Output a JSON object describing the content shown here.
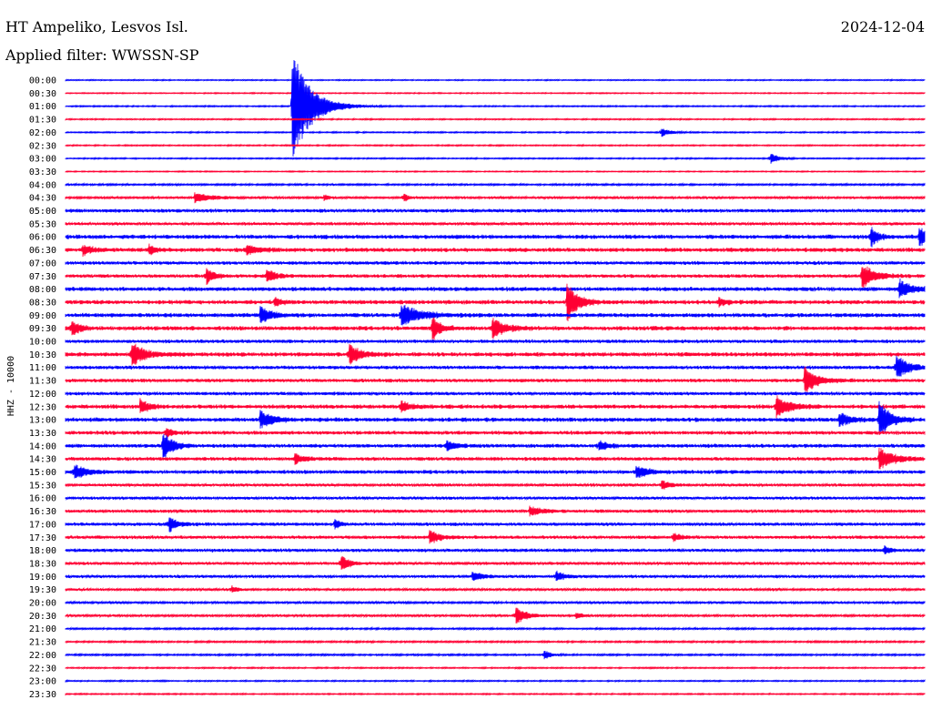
{
  "header": {
    "station": "HT Ampeliko, Lesvos Isl.",
    "date": "2024-12-04",
    "filter": "Applied filter: WWSSN-SP"
  },
  "colors": {
    "blue": "#0000ff",
    "red": "#ff0033"
  },
  "chart_data": {
    "type": "line",
    "title": "HT Ampeliko, Lesvos Isl.",
    "ylabel": "HHZ - 10000",
    "row_colors": [
      "blue",
      "red"
    ],
    "x_range_minutes": [
      0,
      30
    ],
    "tick_labels": [
      "00:00",
      "00:30",
      "01:00",
      "01:30",
      "02:00",
      "02:30",
      "03:00",
      "03:30",
      "04:00",
      "04:30",
      "05:00",
      "05:30",
      "06:00",
      "06:30",
      "07:00",
      "07:30",
      "08:00",
      "08:30",
      "09:00",
      "09:30",
      "10:00",
      "10:30",
      "11:00",
      "11:30",
      "12:00",
      "12:30",
      "13:00",
      "13:30",
      "14:00",
      "14:30",
      "15:00",
      "15:30",
      "16:00",
      "16:30",
      "17:00",
      "17:30",
      "18:00",
      "18:30",
      "19:00",
      "19:30",
      "20:00",
      "20:30",
      "21:00",
      "21:30",
      "22:00",
      "22:30",
      "23:00",
      "23:30"
    ],
    "noise_levels": [
      0.5,
      0.5,
      0.6,
      0.6,
      0.6,
      0.6,
      0.6,
      0.5,
      0.8,
      1.0,
      1.5,
      1.2,
      1.8,
      1.8,
      1.5,
      1.5,
      1.8,
      1.8,
      1.8,
      1.8,
      1.5,
      1.8,
      1.5,
      1.5,
      1.5,
      1.8,
      1.8,
      1.6,
      1.6,
      1.6,
      1.6,
      1.2,
      1.2,
      1.4,
      1.4,
      1.4,
      1.4,
      1.2,
      1.2,
      1.0,
      1.0,
      1.0,
      0.8,
      0.8,
      0.8,
      0.6,
      0.6,
      0.6
    ],
    "events": [
      {
        "row": 2,
        "minute": 7.9,
        "amplitude": 64,
        "duration_min": 1.6
      },
      {
        "row": 4,
        "minute": 20.8,
        "amplitude": 5,
        "duration_min": 0.6
      },
      {
        "row": 6,
        "minute": 24.6,
        "amplitude": 7,
        "duration_min": 0.5
      },
      {
        "row": 9,
        "minute": 4.5,
        "amplitude": 5,
        "duration_min": 1.5
      },
      {
        "row": 9,
        "minute": 9.0,
        "amplitude": 4,
        "duration_min": 0.3
      },
      {
        "row": 9,
        "minute": 11.8,
        "amplitude": 5,
        "duration_min": 0.3
      },
      {
        "row": 12,
        "minute": 28.1,
        "amplitude": 12,
        "duration_min": 0.5
      },
      {
        "row": 12,
        "minute": 29.8,
        "amplitude": 12,
        "duration_min": 0.5
      },
      {
        "row": 13,
        "minute": 0.6,
        "amplitude": 5,
        "duration_min": 0.8
      },
      {
        "row": 13,
        "minute": 2.9,
        "amplitude": 6,
        "duration_min": 0.4
      },
      {
        "row": 13,
        "minute": 6.3,
        "amplitude": 6,
        "duration_min": 0.8
      },
      {
        "row": 15,
        "minute": 4.9,
        "amplitude": 9,
        "duration_min": 0.6
      },
      {
        "row": 15,
        "minute": 7.0,
        "amplitude": 7,
        "duration_min": 0.8
      },
      {
        "row": 15,
        "minute": 27.8,
        "amplitude": 14,
        "duration_min": 1.0
      },
      {
        "row": 16,
        "minute": 29.1,
        "amplitude": 10,
        "duration_min": 1.0
      },
      {
        "row": 17,
        "minute": 17.5,
        "amplitude": 22,
        "duration_min": 0.8
      },
      {
        "row": 17,
        "minute": 7.3,
        "amplitude": 5,
        "duration_min": 0.4
      },
      {
        "row": 17,
        "minute": 22.8,
        "amplitude": 5,
        "duration_min": 0.5
      },
      {
        "row": 18,
        "minute": 6.8,
        "amplitude": 9,
        "duration_min": 0.8
      },
      {
        "row": 18,
        "minute": 11.7,
        "amplitude": 12,
        "duration_min": 1.5
      },
      {
        "row": 19,
        "minute": 0.2,
        "amplitude": 9,
        "duration_min": 0.6
      },
      {
        "row": 19,
        "minute": 12.8,
        "amplitude": 14,
        "duration_min": 0.6
      },
      {
        "row": 19,
        "minute": 14.9,
        "amplitude": 11,
        "duration_min": 1.0
      },
      {
        "row": 21,
        "minute": 2.3,
        "amplitude": 13,
        "duration_min": 1.0
      },
      {
        "row": 21,
        "minute": 9.9,
        "amplitude": 12,
        "duration_min": 0.8
      },
      {
        "row": 22,
        "minute": 29.0,
        "amplitude": 14,
        "duration_min": 1.0
      },
      {
        "row": 23,
        "minute": 25.8,
        "amplitude": 15,
        "duration_min": 1.0
      },
      {
        "row": 25,
        "minute": 2.6,
        "amplitude": 8,
        "duration_min": 0.6
      },
      {
        "row": 25,
        "minute": 11.7,
        "amplitude": 7,
        "duration_min": 0.6
      },
      {
        "row": 25,
        "minute": 24.8,
        "amplitude": 12,
        "duration_min": 1.0
      },
      {
        "row": 26,
        "minute": 6.8,
        "amplitude": 9,
        "duration_min": 1.0
      },
      {
        "row": 26,
        "minute": 27.0,
        "amplitude": 8,
        "duration_min": 0.8
      },
      {
        "row": 26,
        "minute": 28.4,
        "amplitude": 22,
        "duration_min": 0.8
      },
      {
        "row": 27,
        "minute": 3.5,
        "amplitude": 6,
        "duration_min": 0.5
      },
      {
        "row": 28,
        "minute": 3.4,
        "amplitude": 15,
        "duration_min": 0.8
      },
      {
        "row": 28,
        "minute": 13.3,
        "amplitude": 6,
        "duration_min": 0.6
      },
      {
        "row": 28,
        "minute": 18.6,
        "amplitude": 5,
        "duration_min": 0.8
      },
      {
        "row": 29,
        "minute": 28.4,
        "amplitude": 12,
        "duration_min": 1.2
      },
      {
        "row": 29,
        "minute": 8.0,
        "amplitude": 6,
        "duration_min": 0.6
      },
      {
        "row": 30,
        "minute": 0.3,
        "amplitude": 8,
        "duration_min": 1.0
      },
      {
        "row": 30,
        "minute": 19.9,
        "amplitude": 7,
        "duration_min": 1.0
      },
      {
        "row": 31,
        "minute": 20.8,
        "amplitude": 5,
        "duration_min": 0.6
      },
      {
        "row": 33,
        "minute": 16.2,
        "amplitude": 5,
        "duration_min": 1.0
      },
      {
        "row": 34,
        "minute": 3.6,
        "amplitude": 9,
        "duration_min": 0.6
      },
      {
        "row": 34,
        "minute": 9.4,
        "amplitude": 6,
        "duration_min": 0.3
      },
      {
        "row": 35,
        "minute": 12.7,
        "amplitude": 8,
        "duration_min": 0.8
      },
      {
        "row": 35,
        "minute": 21.2,
        "amplitude": 5,
        "duration_min": 0.5
      },
      {
        "row": 36,
        "minute": 28.6,
        "amplitude": 5,
        "duration_min": 0.4
      },
      {
        "row": 37,
        "minute": 9.6,
        "amplitude": 10,
        "duration_min": 0.6
      },
      {
        "row": 38,
        "minute": 14.2,
        "amplitude": 5,
        "duration_min": 0.8
      },
      {
        "row": 38,
        "minute": 17.1,
        "amplitude": 6,
        "duration_min": 0.6
      },
      {
        "row": 39,
        "minute": 5.8,
        "amplitude": 4,
        "duration_min": 0.4
      },
      {
        "row": 41,
        "minute": 15.7,
        "amplitude": 10,
        "duration_min": 0.8
      },
      {
        "row": 41,
        "minute": 17.8,
        "amplitude": 4,
        "duration_min": 0.4
      },
      {
        "row": 44,
        "minute": 16.7,
        "amplitude": 6,
        "duration_min": 0.4
      }
    ]
  }
}
